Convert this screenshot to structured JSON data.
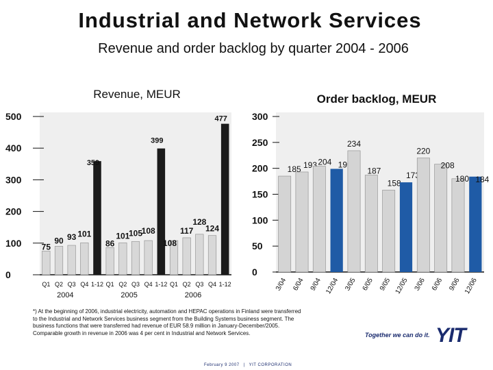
{
  "page": {
    "title": "Industrial and Network Services",
    "subtitle": "Revenue and order backlog by quarter 2004 - 2006"
  },
  "footnote": "*) At the beginning of 2006, industrial electricity, automation and HEPAC operations in Finland were transferred to the Industrial and Network Services business segment from the Building Systems business segment. The business functions that were transferred had revenue of EUR 58.9 million in January-December/2005. Comparable growth in revenue in 2006 was 4 per cent in Industrial and Network Services.",
  "brand": {
    "tagline": "Together we can do it.",
    "logo": "YIT",
    "footer_date": "February 9 2007",
    "footer_separator": "|",
    "footer_company": "YIT CORPORATION"
  },
  "colors": {
    "revenue_bar": "#d8d8d8",
    "revenue_highlight": "#1b1b1b",
    "backlog_bar": "#d4d4d4",
    "backlog_highlight": "#1f5ba6",
    "plot_bg": "#ffffff",
    "chart_bg": "#efefef"
  },
  "chart_data": [
    {
      "type": "bar",
      "title": "Revenue, MEUR",
      "ylim": [
        0,
        500
      ],
      "yticks": [
        0,
        100,
        200,
        300,
        400,
        500
      ],
      "categories": [
        "Q1",
        "Q2",
        "Q3",
        "Q4",
        "1-12",
        "Q1",
        "Q2",
        "Q3",
        "Q4",
        "1-12",
        "Q1",
        "Q2",
        "Q3",
        "Q4",
        "1-12"
      ],
      "values": [
        75,
        90,
        93,
        101,
        359,
        86,
        101,
        105,
        108,
        399,
        108,
        117,
        128,
        124,
        477
      ],
      "highlight": [
        false,
        false,
        false,
        false,
        true,
        false,
        false,
        false,
        false,
        true,
        false,
        false,
        false,
        false,
        true
      ],
      "year_labels": [
        "2004",
        "2005",
        "2006"
      ]
    },
    {
      "type": "bar",
      "title": "Order backlog, MEUR",
      "ylim": [
        0,
        300
      ],
      "yticks": [
        0,
        50,
        100,
        150,
        200,
        250,
        300
      ],
      "categories": [
        "3/04",
        "6/04",
        "9/04",
        "12/04",
        "3/05",
        "6/05",
        "9/05",
        "12/05",
        "3/06",
        "6/06",
        "9/06",
        "12/06"
      ],
      "values": [
        185,
        193,
        204,
        199,
        234,
        187,
        158,
        173,
        220,
        208,
        180,
        184
      ],
      "highlight": [
        false,
        false,
        false,
        true,
        false,
        false,
        false,
        true,
        false,
        false,
        false,
        true
      ]
    }
  ]
}
